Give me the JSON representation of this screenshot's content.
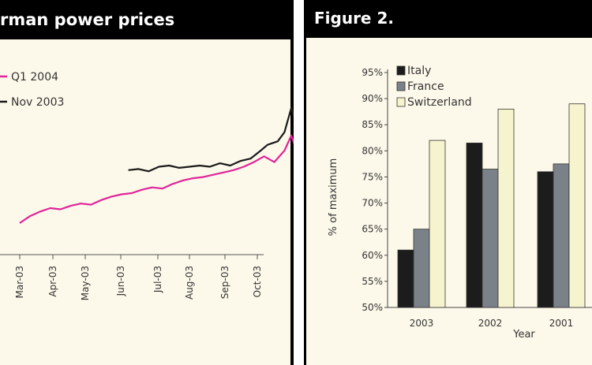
{
  "chart_data": [
    {
      "type": "line",
      "title": "German power prices",
      "title_visible": "rman power prices",
      "x_categories": [
        "Mar-03",
        "Apr-03",
        "May-03",
        "Jun-03",
        "Jul-03",
        "Aug-03",
        "Sep-03",
        "Oct-03"
      ],
      "series": [
        {
          "name": "Q1 2004",
          "color": "#e0249a",
          "values": [
            [
              0.0,
              23.0
            ],
            [
              0.3,
              23.6
            ],
            [
              0.6,
              24.0
            ],
            [
              0.9,
              24.3
            ],
            [
              1.2,
              24.2
            ],
            [
              1.5,
              24.5
            ],
            [
              1.8,
              24.7
            ],
            [
              2.1,
              24.6
            ],
            [
              2.4,
              25.0
            ],
            [
              2.7,
              25.3
            ],
            [
              3.0,
              25.5
            ],
            [
              3.3,
              25.6
            ],
            [
              3.6,
              25.9
            ],
            [
              3.9,
              26.1
            ],
            [
              4.2,
              26.0
            ],
            [
              4.5,
              26.4
            ],
            [
              4.8,
              26.7
            ],
            [
              5.1,
              26.9
            ],
            [
              5.4,
              27.0
            ],
            [
              5.7,
              27.2
            ],
            [
              6.0,
              27.4
            ],
            [
              6.3,
              27.6
            ],
            [
              6.6,
              27.9
            ],
            [
              6.9,
              28.3
            ],
            [
              7.2,
              28.8
            ],
            [
              7.5,
              28.3
            ],
            [
              7.8,
              29.3
            ],
            [
              8.0,
              30.6
            ],
            [
              8.2,
              29.0
            ],
            [
              8.4,
              30.4
            ],
            [
              8.7,
              30.5
            ],
            [
              9.0,
              30.4
            ],
            [
              9.3,
              30.9
            ],
            [
              9.6,
              30.6
            ],
            [
              9.9,
              30.8
            ],
            [
              10.2,
              30.5
            ],
            [
              10.5,
              31.2
            ],
            [
              10.8,
              31.8
            ],
            [
              11.0,
              32.5
            ],
            [
              11.1,
              33.2
            ],
            [
              11.2,
              33.5
            ]
          ]
        },
        {
          "name": "Nov 2003",
          "color": "#1a1a1a",
          "values": [
            [
              3.2,
              27.6
            ],
            [
              3.5,
              27.7
            ],
            [
              3.8,
              27.5
            ],
            [
              4.1,
              27.9
            ],
            [
              4.4,
              28.0
            ],
            [
              4.7,
              27.8
            ],
            [
              5.0,
              27.9
            ],
            [
              5.3,
              28.0
            ],
            [
              5.6,
              27.9
            ],
            [
              5.9,
              28.2
            ],
            [
              6.2,
              28.0
            ],
            [
              6.5,
              28.4
            ],
            [
              6.8,
              28.6
            ],
            [
              7.1,
              29.3
            ],
            [
              7.3,
              29.8
            ],
            [
              7.6,
              30.1
            ],
            [
              7.8,
              30.9
            ],
            [
              8.0,
              33.0
            ],
            [
              8.2,
              31.2
            ],
            [
              8.4,
              31.4
            ],
            [
              8.7,
              31.6
            ],
            [
              8.9,
              32.6
            ],
            [
              9.1,
              33.4
            ],
            [
              9.3,
              33.0
            ],
            [
              9.6,
              31.8
            ],
            [
              9.9,
              31.2
            ],
            [
              10.2,
              31.7
            ],
            [
              10.5,
              32.3
            ],
            [
              10.7,
              32.8
            ],
            [
              10.9,
              34.4
            ],
            [
              11.0,
              37.5
            ],
            [
              11.1,
              37.9
            ],
            [
              11.2,
              37.0
            ]
          ]
        }
      ]
    },
    {
      "type": "bar",
      "title": "Figure 2.",
      "xlabel": "Year",
      "ylabel": "% of maximum",
      "categories": [
        "2003",
        "2002",
        "2001"
      ],
      "ylim": [
        50,
        95
      ],
      "yticks": [
        "50%",
        "55%",
        "60%",
        "65%",
        "70%",
        "75%",
        "80%",
        "85%",
        "90%",
        "95%"
      ],
      "series": [
        {
          "name": "Italy",
          "color": "#1c1c1c",
          "values": [
            61,
            81.5,
            76
          ]
        },
        {
          "name": "France",
          "color": "#7b8189",
          "values": [
            65,
            76.5,
            77.5
          ]
        },
        {
          "name": "Switzerland",
          "color": "#f6f3cf",
          "values": [
            82,
            88,
            89
          ]
        }
      ]
    }
  ]
}
